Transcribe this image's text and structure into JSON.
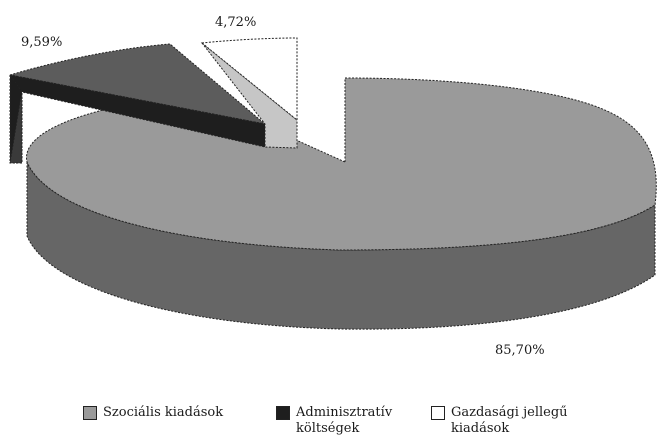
{
  "chart_data": {
    "type": "pie",
    "title": "",
    "style": "3d-exploded",
    "slices": [
      {
        "label": "Szociális kiadások",
        "value": 85.7,
        "value_label": "85,70%",
        "color": "#9a9a9a",
        "side_color": "#666666"
      },
      {
        "label": "Adminisztratív költségek",
        "value": 9.59,
        "value_label": "9,59%",
        "color": "#1e1e1e",
        "side_color": "#5c5c5c"
      },
      {
        "label": "Gazdasági jellegű kiadások",
        "value": 4.72,
        "value_label": "4,72%",
        "color": "#ffffff",
        "side_color": "#c6c6c6"
      }
    ],
    "legend": {
      "placement": "bottom",
      "items": [
        {
          "line1": "Szociális kiadások",
          "line2": "",
          "color": "#9a9a9a"
        },
        {
          "line1": "Adminisztratív",
          "line2": "költségek",
          "color": "#1e1e1e"
        },
        {
          "line1": "Gazdasági jellegű",
          "line2": "kiadások",
          "color": "#ffffff"
        }
      ]
    }
  }
}
